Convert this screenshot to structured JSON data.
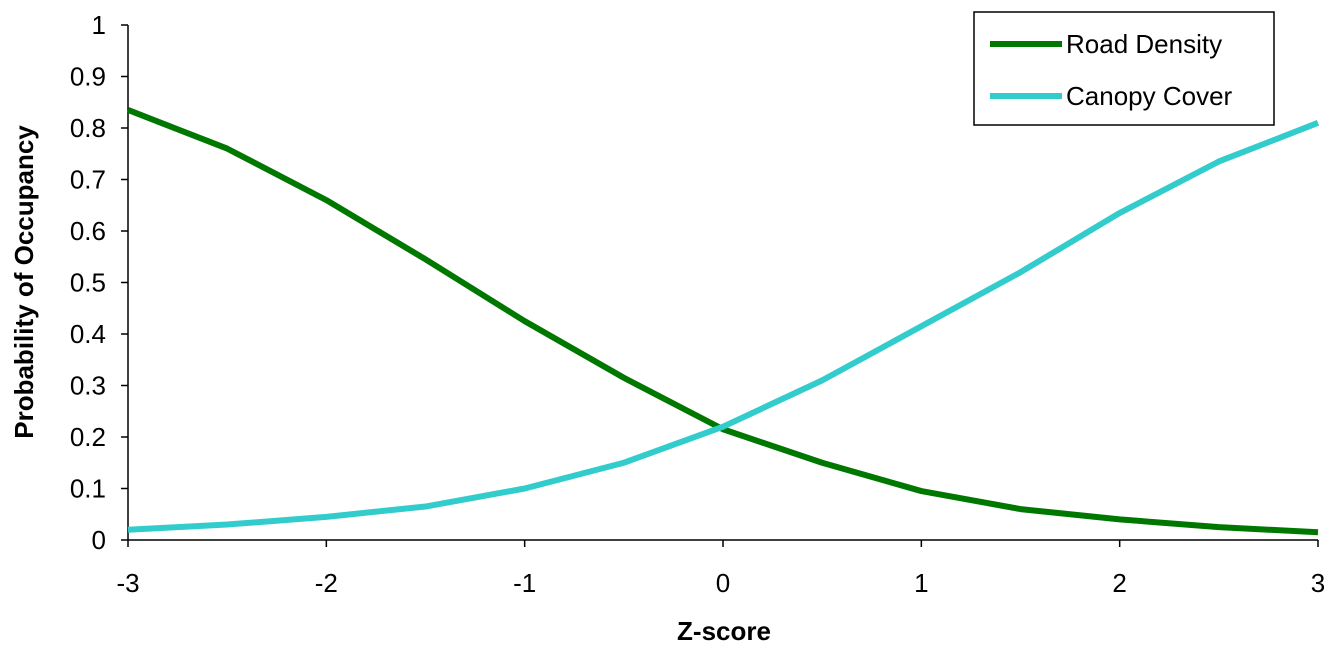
{
  "chart_data": {
    "type": "line",
    "title": "",
    "xlabel": "Z-score",
    "ylabel": "Probability of Occupancy",
    "xlim": [
      -3,
      3
    ],
    "ylim": [
      0,
      1
    ],
    "x_ticks": [
      "-3",
      "-2",
      "-1",
      "0",
      "1",
      "2",
      "3"
    ],
    "y_ticks": [
      "0",
      "0.1",
      "0.2",
      "0.3",
      "0.4",
      "0.5",
      "0.6",
      "0.7",
      "0.8",
      "0.9",
      "1"
    ],
    "x": [
      -3,
      -2.5,
      -2,
      -1.5,
      -1,
      -0.5,
      0,
      0.5,
      1,
      1.5,
      2,
      2.5,
      3
    ],
    "grid": false,
    "legend": "top-right",
    "series": [
      {
        "name": "Road Density",
        "color": "#007800",
        "values": [
          0.835,
          0.76,
          0.66,
          0.545,
          0.425,
          0.315,
          0.215,
          0.15,
          0.095,
          0.06,
          0.04,
          0.025,
          0.015
        ]
      },
      {
        "name": "Canopy Cover",
        "color": "#33CCCC",
        "values": [
          0.02,
          0.03,
          0.045,
          0.065,
          0.1,
          0.15,
          0.22,
          0.31,
          0.415,
          0.52,
          0.635,
          0.735,
          0.81
        ]
      }
    ]
  }
}
